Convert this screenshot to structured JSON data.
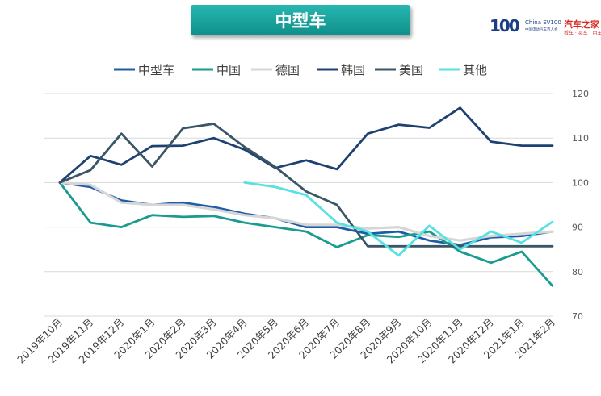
{
  "banner": {
    "title": "中型车"
  },
  "logo": {
    "mark": "100",
    "ev": "China EV100",
    "sub": "中国电动汽车百人会",
    "brand": "汽车之家",
    "slogan": "看车 · 买车 · 用车"
  },
  "chart_data": {
    "type": "line",
    "title": "中型车",
    "xlabel": "",
    "ylabel": "",
    "ylim": [
      70,
      120
    ],
    "yticks": [
      70,
      80,
      90,
      100,
      110,
      120
    ],
    "y_axis_side": "right",
    "grid": true,
    "legend_position": "top",
    "categories": [
      "2019年10月",
      "2019年11月",
      "2019年12月",
      "2020年1月",
      "2020年2月",
      "2020年3月",
      "2020年4月",
      "2020年5月",
      "2020年6月",
      "2020年7月",
      "2020年8月",
      "2020年9月",
      "2020年10月",
      "2020年11月",
      "2020年12月",
      "2021年1月",
      "2021年2月"
    ],
    "series": [
      {
        "name": "中型车",
        "color": "#1f5ca8",
        "width": 2.8,
        "values": [
          100,
          99,
          96,
          95,
          95.5,
          94.5,
          93,
          92,
          90,
          90,
          88.5,
          89,
          87,
          86,
          87.7,
          88,
          89
        ]
      },
      {
        "name": "中国",
        "color": "#1a9b8f",
        "width": 2.8,
        "values": [
          100,
          91,
          90,
          92.7,
          92.3,
          92.5,
          91,
          90,
          89,
          85.5,
          88.2,
          87.8,
          89,
          84.5,
          82,
          84.5,
          76.8
        ]
      },
      {
        "name": "德国",
        "color": "#d6d6d6",
        "width": 3.2,
        "values": [
          100,
          99.5,
          95.5,
          95,
          95,
          94,
          92.7,
          92,
          90.5,
          90.5,
          89.7,
          90,
          88,
          87,
          88,
          88.5,
          89
        ]
      },
      {
        "name": "韩国",
        "color": "#1f4172",
        "width": 2.8,
        "values": [
          100,
          106,
          104,
          108.2,
          108.3,
          110,
          107.4,
          103.3,
          105,
          103,
          111,
          113,
          112.3,
          116.8,
          109.2,
          108.3,
          108.3
        ]
      },
      {
        "name": "美国",
        "color": "#3a5666",
        "width": 2.8,
        "values": [
          100,
          102.8,
          111,
          103.6,
          112.2,
          113.2,
          108,
          103.5,
          98,
          95,
          85.7,
          85.7,
          85.7,
          85.7,
          85.7,
          85.7,
          85.7
        ]
      },
      {
        "name": "其他",
        "color": "#57e1e0",
        "width": 2.8,
        "values": [
          null,
          null,
          null,
          null,
          null,
          null,
          100,
          99,
          97.2,
          91,
          89,
          83.6,
          90.3,
          85,
          89,
          86.5,
          91.2
        ]
      }
    ]
  }
}
